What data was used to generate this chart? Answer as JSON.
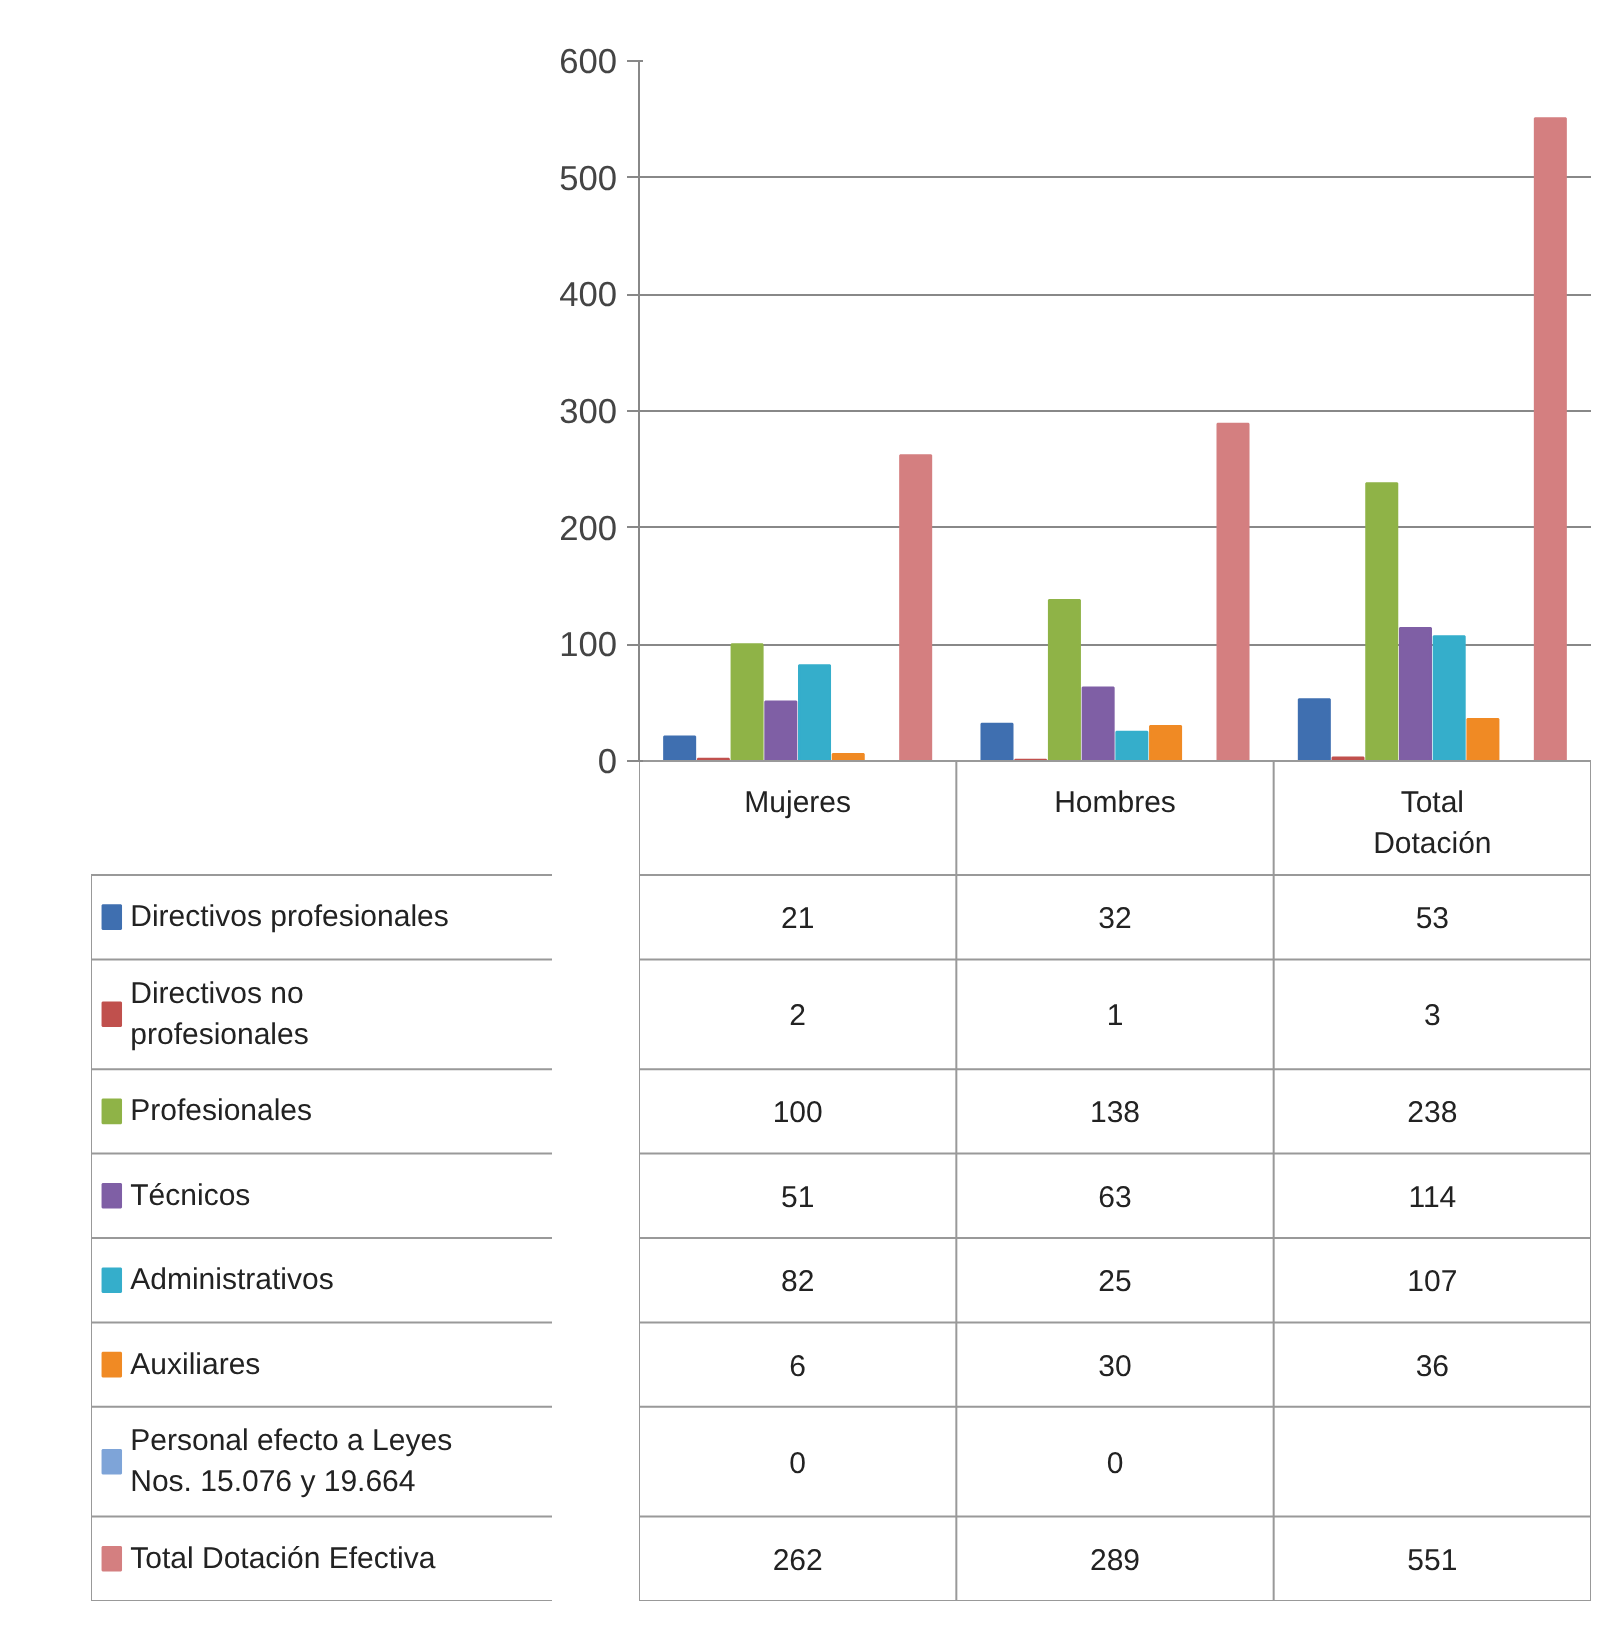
{
  "chart_data": {
    "type": "bar",
    "categories": [
      "Mujeres",
      "Hombres",
      "Total Dotación"
    ],
    "series": [
      {
        "name": "Directivos profesionales",
        "color": "#3f6fb0",
        "values": [
          21,
          32,
          53
        ]
      },
      {
        "name": "Directivos no profesionales",
        "color": "#c0504d",
        "values": [
          2,
          1,
          3
        ]
      },
      {
        "name": "Profesionales",
        "color": "#8fb347",
        "values": [
          100,
          138,
          238
        ]
      },
      {
        "name": "Técnicos",
        "color": "#7f5fa5",
        "values": [
          51,
          63,
          114
        ]
      },
      {
        "name": "Administrativos",
        "color": "#35aecb",
        "values": [
          82,
          25,
          107
        ]
      },
      {
        "name": "Auxiliares",
        "color": "#f08a24",
        "values": [
          6,
          30,
          36
        ]
      },
      {
        "name": "Personal efecto a Leyes Nos. 15.076 y 19.664",
        "color": "#7ea4d8",
        "values": [
          0,
          0,
          null
        ]
      },
      {
        "name": "Total Dotación Efectiva",
        "color": "#d47f80",
        "values": [
          262,
          289,
          551
        ]
      }
    ],
    "ylim": [
      0,
      600
    ],
    "yticks": [
      0,
      100,
      200,
      300,
      400,
      500,
      600
    ],
    "grid": "y",
    "legend": "bottom",
    "data_labels": true
  }
}
